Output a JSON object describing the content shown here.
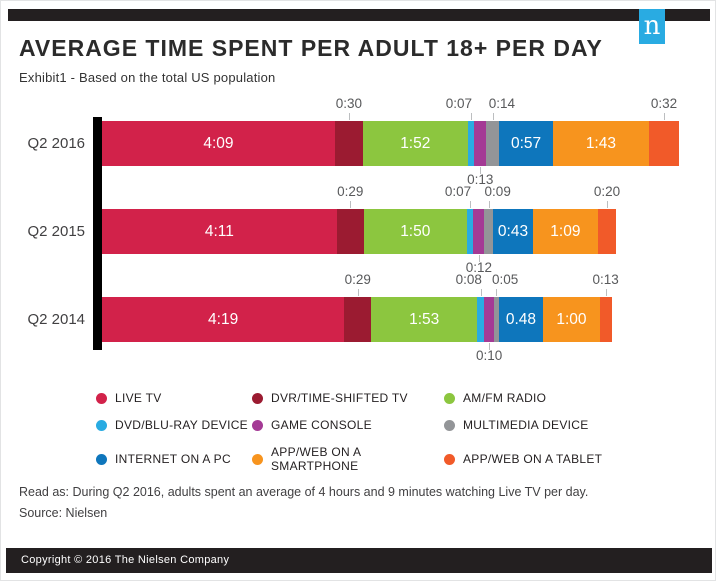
{
  "header": {
    "logo_letter": "n",
    "title": "AVERAGE TIME SPENT PER ADULT 18+ PER DAY",
    "subtitle": "Exhibit1 - Based on the total US population"
  },
  "chart_data": {
    "type": "bar",
    "orientation": "horizontal-stacked",
    "title": "AVERAGE TIME SPENT PER ADULT 18+ PER DAY",
    "unit": "hours:minutes per day",
    "legend_position": "bottom",
    "categories": [
      "Q2 2016",
      "Q2 2015",
      "Q2 2014"
    ],
    "series": [
      {
        "name": "LIVE TV",
        "color": "#d2224a",
        "label_position": "inside",
        "values_minutes": [
          249,
          251,
          259
        ],
        "labels": [
          "4:09",
          "4:11",
          "4:19"
        ]
      },
      {
        "name": "DVR/TIME-SHIFTED TV",
        "color": "#9b1b31",
        "label_position": "above",
        "values_minutes": [
          30,
          29,
          29
        ],
        "labels": [
          "0:30",
          "0:29",
          "0:29"
        ]
      },
      {
        "name": "AM/FM RADIO",
        "color": "#8cc63f",
        "label_position": "inside",
        "values_minutes": [
          112,
          110,
          113
        ],
        "labels": [
          "1:52",
          "1:50",
          "1:53"
        ]
      },
      {
        "name": "DVD/BLU-RAY DEVICE",
        "color": "#29abe2",
        "label_position": "above",
        "values_minutes": [
          7,
          7,
          8
        ],
        "labels": [
          "0:07",
          "0:07",
          "0:08"
        ]
      },
      {
        "name": "GAME CONSOLE",
        "color": "#a43a95",
        "label_position": "below",
        "values_minutes": [
          13,
          12,
          10
        ],
        "labels": [
          "0:13",
          "0:12",
          "0:10"
        ]
      },
      {
        "name": "MULTIMEDIA DEVICE",
        "color": "#939598",
        "label_position": "above",
        "values_minutes": [
          14,
          9,
          5
        ],
        "labels": [
          "0:14",
          "0:09",
          "0:05"
        ]
      },
      {
        "name": "INTERNET ON A PC",
        "color": "#0e76bc",
        "label_position": "inside",
        "values_minutes": [
          57,
          43,
          48
        ],
        "labels": [
          "0:57",
          "0:43",
          "0.48"
        ]
      },
      {
        "name": "APP/WEB ON A SMARTPHONE",
        "color": "#f7941e",
        "label_position": "inside",
        "values_minutes": [
          103,
          69,
          60
        ],
        "labels": [
          "1:43",
          "1:09",
          "1:00"
        ]
      },
      {
        "name": "APP/WEB ON A TABLET",
        "color": "#f15a29",
        "label_position": "above",
        "values_minutes": [
          32,
          20,
          13
        ],
        "labels": [
          "0:32",
          "0:20",
          "0:13"
        ]
      }
    ]
  },
  "notes": {
    "read_as": "Read as: During Q2 2016, adults spent an average of 4 hours and 9 minutes watching Live TV per day.",
    "source": "Source: Nielsen"
  },
  "footer": {
    "copyright": "Copyright © 2016 The Nielsen Company"
  }
}
